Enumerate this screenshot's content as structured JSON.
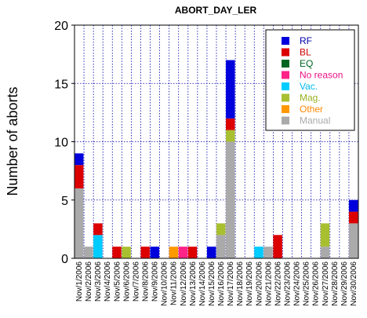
{
  "chart_data": {
    "type": "bar",
    "stacked": true,
    "title": "ABORT_DAY_LER",
    "xlabel": "",
    "ylabel": "Number of aborts",
    "ylim": [
      0,
      20
    ],
    "yticks": [
      0,
      5,
      10,
      15,
      20
    ],
    "grid": true,
    "legend_position": "top-right",
    "categories": [
      "Nov/1/2006",
      "Nov/2/2006",
      "Nov/3/2006",
      "Nov/4/2006",
      "Nov/5/2006",
      "Nov/6/2006",
      "Nov/7/2006",
      "Nov/8/2006",
      "Nov/9/2006",
      "Nov/10/2006",
      "Nov/11/2006",
      "Nov/12/2006",
      "Nov/13/2006",
      "Nov/14/2006",
      "Nov/15/2006",
      "Nov/16/2006",
      "Nov/17/2006",
      "Nov/18/2006",
      "Nov/19/2006",
      "Nov/20/2006",
      "Nov/21/2006",
      "Nov/22/2006",
      "Nov/23/2006",
      "Nov/24/2006",
      "Nov/25/2006",
      "Nov/26/2006",
      "Nov/27/2006",
      "Nov/28/2006",
      "Nov/29/2006",
      "Nov/30/2006"
    ],
    "series": [
      {
        "name": "Manual",
        "color": "#aaaaaa",
        "values": [
          6,
          1,
          0,
          0,
          0,
          0,
          0,
          0,
          0,
          0,
          0,
          0,
          0,
          0,
          0,
          2,
          10,
          0,
          0,
          0,
          1,
          0,
          0,
          0,
          0,
          0,
          1,
          0,
          0,
          3
        ]
      },
      {
        "name": "Other",
        "color": "#ff9900",
        "values": [
          0,
          0,
          0,
          0,
          0,
          0,
          0,
          0,
          0,
          0,
          1,
          0,
          0,
          0,
          0,
          0,
          0,
          0,
          0,
          0,
          0,
          0,
          0,
          0,
          0,
          0,
          0,
          0,
          0,
          0
        ]
      },
      {
        "name": "Mag.",
        "color": "#a8c030",
        "values": [
          0,
          0,
          0,
          0,
          0,
          1,
          0,
          0,
          0,
          0,
          0,
          0,
          0,
          0,
          0,
          1,
          1,
          0,
          0,
          0,
          0,
          0,
          0,
          0,
          0,
          0,
          2,
          0,
          0,
          0
        ]
      },
      {
        "name": "Vac.",
        "color": "#00ccff",
        "values": [
          0,
          0,
          2,
          0,
          0,
          0,
          0,
          0,
          0,
          0,
          0,
          0,
          0,
          0,
          0,
          0,
          0,
          0,
          0,
          1,
          0,
          0,
          0,
          0,
          0,
          0,
          0,
          0,
          0,
          0
        ]
      },
      {
        "name": "No reason",
        "color": "#ff2288",
        "values": [
          0,
          0,
          0,
          0,
          0,
          0,
          0,
          0,
          0,
          0,
          0,
          1,
          0,
          0,
          0,
          0,
          0,
          0,
          0,
          0,
          0,
          0,
          0,
          0,
          0,
          0,
          0,
          0,
          0,
          0
        ]
      },
      {
        "name": "EQ",
        "color": "#006622",
        "values": [
          0,
          0,
          0,
          0,
          0,
          0,
          0,
          0,
          0,
          0,
          0,
          0,
          0,
          0,
          0,
          0,
          0,
          0,
          0,
          0,
          0,
          0,
          0,
          0,
          0,
          0,
          0,
          0,
          0,
          0
        ]
      },
      {
        "name": "BL",
        "color": "#dd0000",
        "values": [
          2,
          0,
          1,
          0,
          1,
          0,
          0,
          1,
          0,
          0,
          0,
          0,
          1,
          0,
          0,
          0,
          1,
          0,
          0,
          0,
          0,
          2,
          0,
          0,
          0,
          0,
          0,
          0,
          0,
          1
        ]
      },
      {
        "name": "RF",
        "color": "#0000dd",
        "values": [
          1,
          0,
          0,
          0,
          0,
          0,
          0,
          0,
          1,
          0,
          0,
          0,
          0,
          0,
          1,
          0,
          5,
          0,
          0,
          0,
          0,
          0,
          0,
          0,
          0,
          0,
          0,
          0,
          0,
          1
        ]
      }
    ],
    "legend": [
      {
        "name": "RF",
        "color": "#0000dd",
        "text_color": "#0000aa"
      },
      {
        "name": "BL",
        "color": "#dd0000",
        "text_color": "#cc0000"
      },
      {
        "name": "EQ",
        "color": "#006622",
        "text_color": "#006622"
      },
      {
        "name": "No reason",
        "color": "#ff2288",
        "text_color": "#ee1188"
      },
      {
        "name": "Vac.",
        "color": "#00ccff",
        "text_color": "#00bbee"
      },
      {
        "name": "Mag.",
        "color": "#a8c030",
        "text_color": "#99b020"
      },
      {
        "name": "Other",
        "color": "#ff9900",
        "text_color": "#ff8800"
      },
      {
        "name": "Manual",
        "color": "#aaaaaa",
        "text_color": "#aaaaaa"
      }
    ]
  }
}
